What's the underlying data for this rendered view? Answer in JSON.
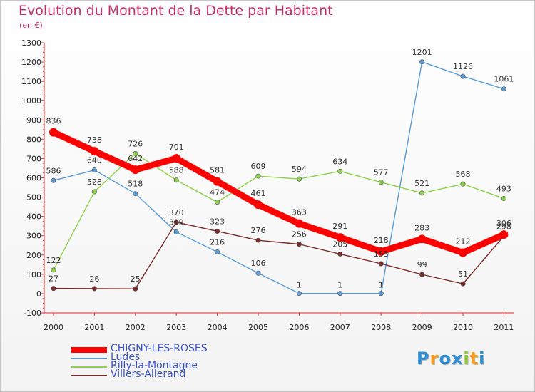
{
  "title": "Evolution du Montant de la Dette par Habitant",
  "unit": "(en €)",
  "logo_text": "Proxiti",
  "chart_data": {
    "type": "line",
    "title": "Evolution du Montant de la Dette par Habitant",
    "subtitle": "(en €)",
    "categories": [
      "2000",
      "2001",
      "2002",
      "2003",
      "2004",
      "2005",
      "2006",
      "2007",
      "2008",
      "2009",
      "2010",
      "2011"
    ],
    "y_ticks": [
      -100,
      0,
      100,
      200,
      300,
      400,
      500,
      600,
      700,
      800,
      900,
      1000,
      1100,
      1200,
      1300
    ],
    "ylim": [
      -100,
      1300
    ],
    "grid": false,
    "legend_position": "bottom-left",
    "series": [
      {
        "name": "CHIGNY-LES-ROSES",
        "color": "#ff0000",
        "emphasis": true,
        "values": [
          836,
          738,
          642,
          701,
          581,
          461,
          363,
          291,
          218,
          283,
          212,
          306
        ]
      },
      {
        "name": "Ludes",
        "color": "#5b9bd5",
        "values": [
          586,
          640,
          518,
          319,
          216,
          106,
          1,
          1,
          1,
          1201,
          1126,
          1061
        ]
      },
      {
        "name": "Rilly-la-Montagne",
        "color": "#8fd14f",
        "values": [
          122,
          528,
          726,
          588,
          474,
          609,
          594,
          634,
          577,
          521,
          568,
          493
        ]
      },
      {
        "name": "Villers-Allerand",
        "color": "#7b2a2a",
        "values": [
          27,
          26,
          25,
          370,
          323,
          276,
          256,
          205,
          155,
          99,
          51,
          298
        ]
      }
    ]
  }
}
